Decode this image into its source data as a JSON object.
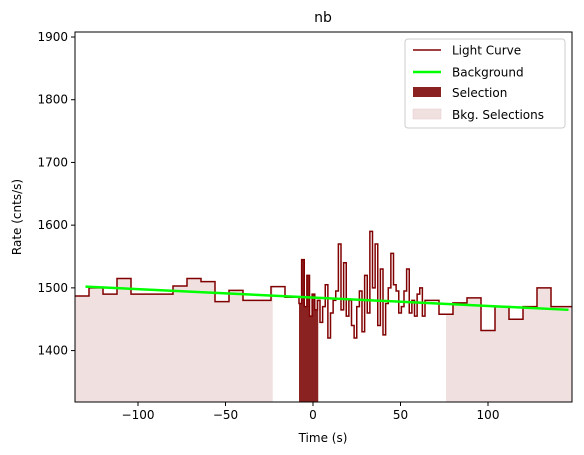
{
  "chart_data": {
    "type": "line",
    "title": "nb",
    "xlabel": "Time (s)",
    "ylabel": "Rate (cnts/s)",
    "xlim": [
      -136,
      148
    ],
    "ylim": [
      1318,
      1908
    ],
    "xticks": [
      -100,
      -50,
      0,
      50,
      100
    ],
    "yticks": [
      1400,
      1500,
      1600,
      1700,
      1800,
      1900
    ],
    "grid": false,
    "legend_position": "top-right",
    "legend": [
      "Light Curve",
      "Background",
      "Selection",
      "Bkg. Selections"
    ],
    "colors": {
      "light_curve": "#800000",
      "background": "#00ff00",
      "selection": "#8b2222",
      "bkg_selection": "#f0e0e0"
    },
    "series": [
      {
        "name": "Light Curve",
        "style": "step",
        "x": [
          -136,
          -128,
          -120,
          -112,
          -104,
          -96,
          -88,
          -80,
          -72,
          -64,
          -56,
          -48,
          -40,
          -32,
          -24,
          -16,
          -8,
          -6.5,
          -5,
          -3.5,
          -2,
          -0.5,
          1,
          2.5,
          4,
          5.5,
          7,
          8.5,
          10,
          11.5,
          13,
          14.5,
          16,
          17.5,
          19,
          20.5,
          22,
          23.5,
          25,
          26.5,
          28,
          29.5,
          31,
          32.5,
          34,
          35.5,
          37,
          38.5,
          40,
          41.5,
          43,
          44.5,
          46,
          47.5,
          49,
          50.5,
          52,
          53.5,
          55,
          56.5,
          58,
          59.5,
          61,
          62.5,
          64,
          72,
          80,
          88,
          96,
          104,
          112,
          120,
          128,
          136,
          148
        ],
        "y": [
          1487,
          1500,
          1490,
          1515,
          1490,
          1490,
          1490,
          1503,
          1515,
          1510,
          1478,
          1496,
          1480,
          1480,
          1502,
          1485,
          1475,
          1545,
          1470,
          1520,
          1455,
          1490,
          1465,
          1480,
          1445,
          1470,
          1505,
          1420,
          1460,
          1480,
          1495,
          1570,
          1465,
          1540,
          1455,
          1480,
          1440,
          1420,
          1470,
          1495,
          1430,
          1520,
          1460,
          1590,
          1500,
          1570,
          1440,
          1530,
          1425,
          1475,
          1500,
          1555,
          1505,
          1495,
          1460,
          1470,
          1495,
          1530,
          1460,
          1480,
          1455,
          1490,
          1500,
          1455,
          1480,
          1458,
          1476,
          1484,
          1432,
          1470,
          1450,
          1470,
          1500,
          1470,
          1470
        ]
      },
      {
        "name": "Background",
        "style": "line",
        "x": [
          -130,
          146
        ],
        "y": [
          1502,
          1465
        ]
      }
    ],
    "selection": {
      "name": "Selection",
      "x_range": [
        -8,
        3
      ]
    },
    "bkg_selections": [
      {
        "name": "Bkg. Selections",
        "x_range": [
          -136,
          -23
        ]
      },
      {
        "name": "Bkg. Selections",
        "x_range": [
          76,
          148
        ]
      }
    ]
  }
}
